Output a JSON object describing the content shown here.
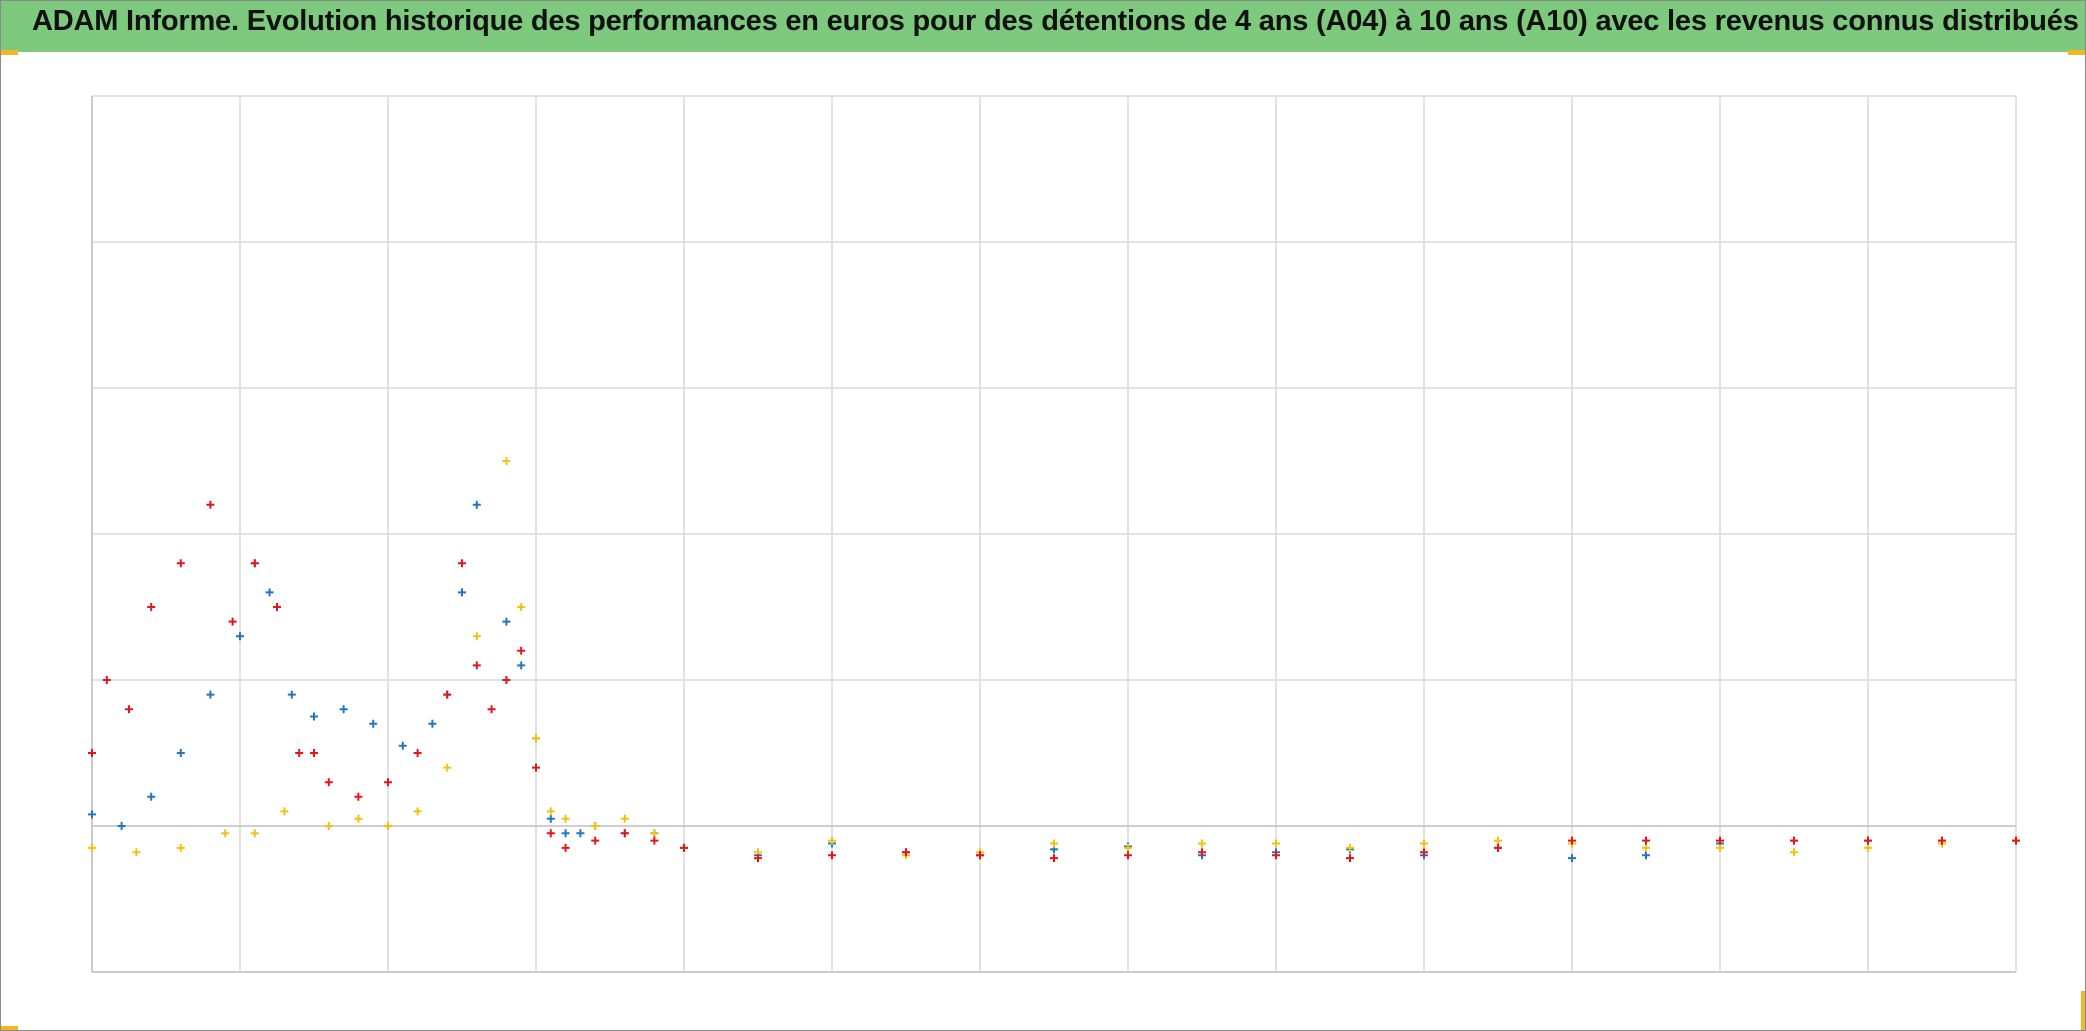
{
  "title": "ADAM Informe. Evolution historique des performances en euros pour des détentions de 4 ans (A04) à 10 ans (A10) avec les revenus connus distribués",
  "colors": {
    "header_bg": "#7dc97d",
    "accent": "#f2b824",
    "grid": "#d9d9d9"
  },
  "chart_data": {
    "type": "scatter",
    "marker": "plus",
    "title": "ADAM Informe. Evolution historique des performances en euros pour des détentions de 4 ans (A04) à 10 ans (A10) avec les revenus connus distribués",
    "xlabel": "",
    "ylabel": "",
    "x_tick_labels": [],
    "y_tick_labels": [],
    "legend": "none",
    "grid": true,
    "xlim": [
      0,
      13
    ],
    "ylim": [
      -1,
      5
    ],
    "series": [
      {
        "color": "#1f77c4",
        "x": [
          0,
          0.2,
          0.4,
          0.6,
          0.8,
          1.0,
          1.1,
          1.2,
          1.35,
          1.5,
          1.7,
          1.9,
          2.1,
          2.3,
          2.4,
          2.5,
          2.6,
          2.8,
          2.9,
          3.0,
          3.1,
          3.2,
          3.3,
          3.4,
          3.6,
          3.8,
          4.0,
          4.5,
          5.0,
          5.5,
          6.0,
          6.5,
          7.0,
          7.5,
          8.0,
          8.5,
          9.0,
          9.5,
          10.0,
          10.5,
          11.0,
          11.5,
          12.0,
          12.5,
          13.0
        ],
        "y": [
          0.08,
          0.0,
          0.2,
          0.5,
          0.9,
          1.3,
          1.8,
          1.6,
          0.9,
          0.75,
          0.8,
          0.7,
          0.55,
          0.7,
          0.9,
          1.6,
          2.2,
          1.4,
          1.1,
          0.6,
          0.05,
          -0.05,
          -0.05,
          0.0,
          -0.05,
          -0.05,
          -0.15,
          -0.2,
          -0.12,
          -0.18,
          -0.2,
          -0.16,
          -0.14,
          -0.2,
          -0.18,
          -0.16,
          -0.2,
          -0.15,
          -0.22,
          -0.2,
          -0.12,
          -0.1,
          -0.1,
          -0.1,
          -0.1
        ]
      },
      {
        "color": "#f4c20d",
        "x": [
          0,
          0.3,
          0.6,
          0.9,
          1.1,
          1.3,
          1.6,
          1.8,
          2.0,
          2.2,
          2.4,
          2.6,
          2.8,
          2.9,
          3.0,
          3.1,
          3.2,
          3.4,
          3.6,
          3.8,
          4.0,
          4.5,
          5.0,
          5.5,
          6.0,
          6.5,
          7.0,
          7.5,
          8.0,
          8.5,
          9.0,
          9.5,
          10.0,
          10.5,
          11.0,
          11.5,
          12.0,
          12.5,
          13.0
        ],
        "y": [
          -0.15,
          -0.18,
          -0.15,
          -0.05,
          -0.05,
          0.1,
          0.0,
          0.05,
          0.0,
          0.1,
          0.4,
          1.3,
          2.5,
          1.5,
          0.6,
          0.1,
          0.05,
          0.0,
          0.05,
          -0.05,
          -0.15,
          -0.18,
          -0.1,
          -0.2,
          -0.18,
          -0.12,
          -0.15,
          -0.12,
          -0.12,
          -0.15,
          -0.12,
          -0.1,
          -0.12,
          -0.15,
          -0.15,
          -0.18,
          -0.15,
          -0.12,
          -0.1
        ]
      },
      {
        "color": "#e8141c",
        "x": [
          0,
          0.1,
          0.25,
          0.4,
          0.6,
          0.8,
          0.95,
          1.1,
          1.25,
          1.4,
          1.5,
          1.6,
          1.8,
          2.0,
          2.2,
          2.4,
          2.5,
          2.6,
          2.7,
          2.8,
          2.9,
          3.0,
          3.1,
          3.2,
          3.4,
          3.6,
          3.8,
          4.0,
          4.5,
          5.0,
          5.5,
          6.0,
          6.5,
          7.0,
          7.5,
          8.0,
          8.5,
          9.0,
          9.5,
          10.0,
          10.5,
          11.0,
          11.5,
          12.0,
          12.5,
          13.0
        ],
        "y": [
          0.5,
          1.0,
          0.8,
          1.5,
          1.8,
          2.2,
          1.4,
          1.8,
          1.5,
          0.5,
          0.5,
          0.3,
          0.2,
          0.3,
          0.5,
          0.9,
          1.8,
          1.1,
          0.8,
          1.0,
          1.2,
          0.4,
          -0.05,
          -0.15,
          -0.1,
          -0.05,
          -0.1,
          -0.15,
          -0.22,
          -0.2,
          -0.18,
          -0.2,
          -0.22,
          -0.2,
          -0.18,
          -0.2,
          -0.22,
          -0.18,
          -0.15,
          -0.1,
          -0.1,
          -0.1,
          -0.1,
          -0.1,
          -0.1,
          -0.1
        ]
      }
    ]
  }
}
